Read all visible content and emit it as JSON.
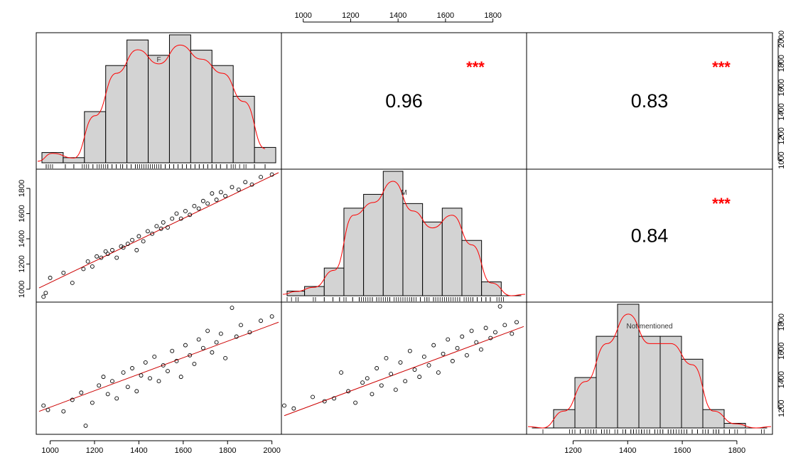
{
  "chart_data": {
    "type": "scatter",
    "variables": [
      "F",
      "M",
      "Not mentioned"
    ],
    "axis_ticks": {
      "F": [
        1000,
        1200,
        1400,
        1600,
        1800,
        2000
      ],
      "M": [
        1000,
        1200,
        1400,
        1600,
        1800
      ],
      "Not mentioned": [
        1200,
        1400,
        1600,
        1800
      ]
    },
    "axis_ranges": {
      "F": [
        950,
        2030
      ],
      "M": [
        920,
        1930
      ],
      "Not mentioned": [
        1040,
        1920
      ]
    },
    "correlations": [
      {
        "pair": [
          "F",
          "M"
        ],
        "value": "0.96",
        "significance": "***"
      },
      {
        "pair": [
          "F",
          "Not mentioned"
        ],
        "value": "0.83",
        "significance": "***"
      },
      {
        "pair": [
          "M",
          "Not mentioned"
        ],
        "value": "0.84",
        "significance": "***"
      }
    ],
    "histograms": {
      "F": {
        "bin_edges": [
          950,
          1050,
          1150,
          1250,
          1350,
          1450,
          1550,
          1650,
          1750,
          1850,
          1950,
          2050
        ],
        "heights": [
          2,
          1,
          10,
          19,
          24,
          21,
          25,
          22,
          19,
          13,
          3,
          1
        ]
      },
      "M": {
        "bin_edges": [
          920,
          1000,
          1090,
          1180,
          1270,
          1360,
          1450,
          1540,
          1630,
          1720,
          1810,
          1900,
          1990
        ],
        "heights": [
          1,
          2,
          6,
          19,
          22,
          27,
          20,
          16,
          19,
          12,
          3,
          0
        ]
      },
      "Not mentioned": {
        "bin_edges": [
          1040,
          1120,
          1200,
          1280,
          1360,
          1440,
          1520,
          1600,
          1680,
          1760,
          1840,
          1920
        ],
        "heights": [
          0,
          4,
          11,
          20,
          27,
          20,
          20,
          15,
          4,
          1,
          0
        ]
      }
    },
    "scatter": {
      "M_vs_F": {
        "x": [
          970,
          980,
          1000,
          1060,
          1100,
          1150,
          1170,
          1190,
          1210,
          1230,
          1250,
          1260,
          1280,
          1300,
          1320,
          1330,
          1350,
          1370,
          1390,
          1400,
          1420,
          1440,
          1460,
          1480,
          1500,
          1510,
          1530,
          1550,
          1570,
          1590,
          1610,
          1630,
          1650,
          1670,
          1690,
          1710,
          1730,
          1750,
          1770,
          1790,
          1820,
          1850,
          1880,
          1910,
          1950,
          2000
        ],
        "y": [
          940,
          970,
          1090,
          1130,
          1050,
          1160,
          1220,
          1180,
          1260,
          1250,
          1300,
          1280,
          1310,
          1250,
          1340,
          1330,
          1360,
          1390,
          1310,
          1420,
          1380,
          1460,
          1440,
          1500,
          1480,
          1530,
          1490,
          1560,
          1600,
          1560,
          1620,
          1590,
          1660,
          1640,
          1700,
          1680,
          1760,
          1710,
          1770,
          1740,
          1810,
          1790,
          1850,
          1830,
          1890,
          1910
        ]
      },
      "NotMentioned_vs_F": {
        "x": [
          970,
          990,
          1060,
          1100,
          1140,
          1160,
          1190,
          1220,
          1240,
          1260,
          1280,
          1300,
          1330,
          1350,
          1370,
          1390,
          1410,
          1430,
          1450,
          1470,
          1490,
          1510,
          1530,
          1550,
          1570,
          1590,
          1610,
          1630,
          1650,
          1670,
          1690,
          1710,
          1730,
          1750,
          1770,
          1790,
          1820,
          1840,
          1860,
          1900,
          1950,
          2000
        ],
        "y": [
          1220,
          1190,
          1180,
          1260,
          1310,
          1080,
          1240,
          1360,
          1420,
          1300,
          1390,
          1270,
          1450,
          1350,
          1480,
          1320,
          1430,
          1520,
          1410,
          1560,
          1390,
          1500,
          1460,
          1600,
          1530,
          1420,
          1640,
          1570,
          1510,
          1680,
          1620,
          1740,
          1590,
          1660,
          1720,
          1550,
          1900,
          1700,
          1780,
          1730,
          1810,
          1840
        ]
      },
      "NotMentioned_vs_M": {
        "x": [
          920,
          960,
          1040,
          1090,
          1130,
          1160,
          1190,
          1220,
          1250,
          1270,
          1290,
          1310,
          1330,
          1350,
          1370,
          1390,
          1410,
          1430,
          1450,
          1470,
          1490,
          1510,
          1530,
          1550,
          1570,
          1590,
          1610,
          1630,
          1650,
          1670,
          1690,
          1710,
          1730,
          1750,
          1770,
          1790,
          1810,
          1830,
          1850,
          1880,
          1900
        ],
        "y": [
          1220,
          1200,
          1280,
          1250,
          1270,
          1450,
          1320,
          1240,
          1380,
          1410,
          1300,
          1480,
          1360,
          1550,
          1440,
          1330,
          1520,
          1390,
          1600,
          1470,
          1420,
          1560,
          1500,
          1640,
          1450,
          1580,
          1680,
          1530,
          1620,
          1700,
          1570,
          1740,
          1660,
          1610,
          1760,
          1690,
          1730,
          1910,
          1780,
          1720,
          1800
        ]
      }
    },
    "fit_lines": {
      "M_vs_F": {
        "x": [
          950,
          2030
        ],
        "y": [
          1010,
          1925
        ]
      },
      "NotMentioned_vs_F": {
        "x": [
          950,
          2030
        ],
        "y": [
          1180,
          1800
        ]
      },
      "NotMentioned_vs_M": {
        "x": [
          920,
          1930
        ],
        "y": [
          1150,
          1770
        ]
      }
    },
    "colors": {
      "fit_line": "#cc0000",
      "density": "#ff0000",
      "stars": "#ff0000",
      "bar_fill": "#d3d3d3"
    }
  }
}
